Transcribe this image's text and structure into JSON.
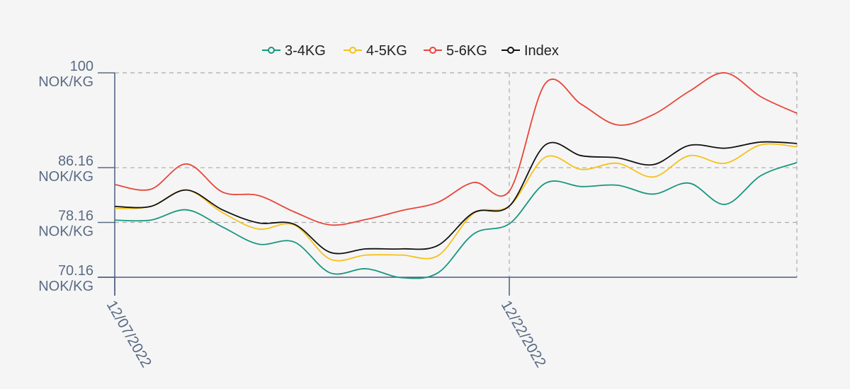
{
  "chart_data": {
    "type": "line",
    "x_ticks": [
      "12/07/2022",
      "12/22/2022"
    ],
    "y_ticks": [
      {
        "value": 100,
        "lines": [
          "100",
          "NOK/KG"
        ]
      },
      {
        "value": 86.16,
        "lines": [
          "86.16",
          "NOK/KG"
        ]
      },
      {
        "value": 78.16,
        "lines": [
          "78.16",
          "NOK/KG"
        ]
      },
      {
        "value": 70.16,
        "lines": [
          "70.16",
          "NOK/KG"
        ]
      }
    ],
    "ylim": [
      70.16,
      100
    ],
    "grid": "dashed",
    "legend_position": "top",
    "series": [
      {
        "name": "3-4KG",
        "color": "#17977f",
        "values": [
          78.5,
          78.5,
          80.0,
          77.5,
          75.0,
          75.3,
          70.8,
          71.4,
          70.1,
          70.8,
          76.5,
          78.0,
          83.9,
          83.4,
          83.6,
          82.3,
          83.9,
          80.8,
          85.0,
          86.9
        ]
      },
      {
        "name": "4-5KG",
        "color": "#f5c219",
        "values": [
          80.2,
          80.5,
          82.9,
          79.6,
          77.2,
          77.8,
          72.8,
          73.4,
          73.4,
          73.3,
          79.5,
          80.6,
          87.7,
          85.9,
          86.8,
          84.8,
          87.9,
          86.8,
          89.5,
          89.2
        ]
      },
      {
        "name": "5-6KG",
        "color": "#e8453a",
        "values": [
          83.7,
          83.0,
          86.7,
          82.6,
          82.1,
          79.7,
          77.8,
          78.6,
          79.9,
          81.1,
          84.0,
          82.8,
          98.5,
          95.4,
          92.4,
          93.9,
          97.3,
          100.0,
          96.5,
          94.1
        ]
      },
      {
        "name": "Index",
        "color": "#111111",
        "values": [
          80.5,
          80.5,
          82.9,
          80.0,
          78.1,
          77.9,
          73.8,
          74.3,
          74.3,
          74.8,
          79.6,
          80.6,
          89.5,
          87.9,
          87.6,
          86.6,
          89.4,
          89.0,
          89.9,
          89.7
        ]
      }
    ]
  }
}
